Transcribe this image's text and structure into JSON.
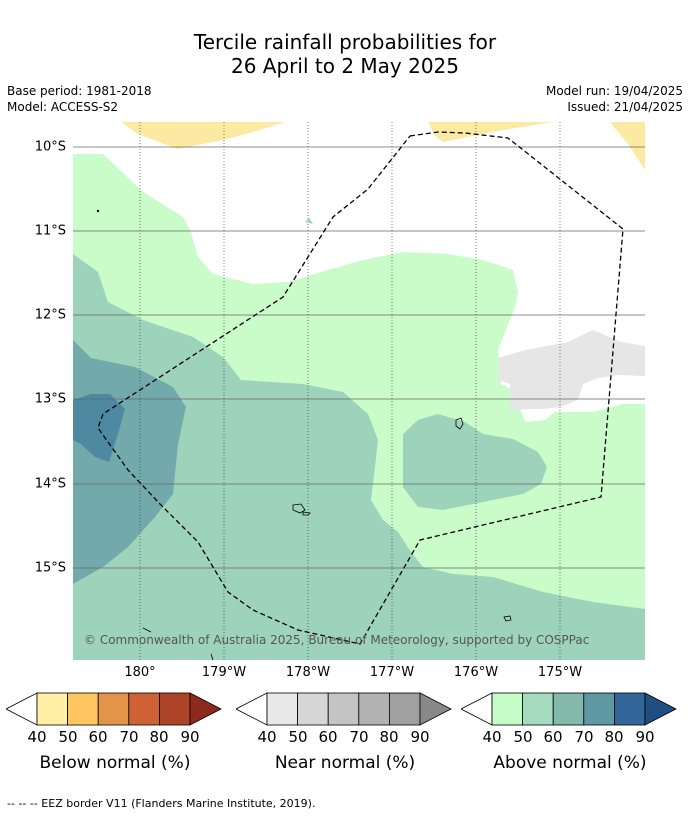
{
  "title_line1": "Tercile rainfall probabilities for",
  "title_line2": "26 April to 2 May 2025",
  "base_period": "Base period: 1981-2018",
  "model": "Model: ACCESS-S2",
  "model_run": "Model run: 19/04/2025",
  "issued": "Issued: 21/04/2025",
  "map": {
    "lat_labels": [
      "10°S",
      "11°S",
      "12°S",
      "13°S",
      "14°S",
      "15°S"
    ],
    "lon_labels": [
      "180°",
      "179°W",
      "178°W",
      "177°W",
      "176°W",
      "175°W"
    ],
    "copyright": "© Commonwealth of Australia 2025, Bureau of Meteorology, supported by COSPPac",
    "colors": {
      "above_40": "#c9fcc9",
      "above_50": "#9ed3bb",
      "above_60": "#72a9aa",
      "above_70": "#4d8aa1",
      "below_40": "#fdeaa2",
      "near_40": "#e6e6e6",
      "eez_border": "#000000"
    }
  },
  "legends": [
    {
      "title": "Below normal (%)",
      "ticks": [
        "40",
        "50",
        "60",
        "70",
        "80",
        "90"
      ],
      "colors": [
        "#fff0a5",
        "#fec660",
        "#e3944a",
        "#cf6235",
        "#ad4427",
        "#8b2a1d"
      ]
    },
    {
      "title": "Near normal (%)",
      "ticks": [
        "40",
        "50",
        "60",
        "70",
        "80",
        "90"
      ],
      "colors": [
        "#e8e8e8",
        "#d6d6d6",
        "#c4c4c4",
        "#b2b2b2",
        "#a0a0a0",
        "#888888"
      ]
    },
    {
      "title": "Above normal (%)",
      "ticks": [
        "40",
        "50",
        "60",
        "70",
        "80",
        "90"
      ],
      "colors": [
        "#c6fcc8",
        "#a5dbbf",
        "#82b9ab",
        "#5e98a3",
        "#336699",
        "#1f4f82"
      ]
    }
  ],
  "footer": "--  --  -- EEZ border V11 (Flanders Marine Institute, 2019)."
}
